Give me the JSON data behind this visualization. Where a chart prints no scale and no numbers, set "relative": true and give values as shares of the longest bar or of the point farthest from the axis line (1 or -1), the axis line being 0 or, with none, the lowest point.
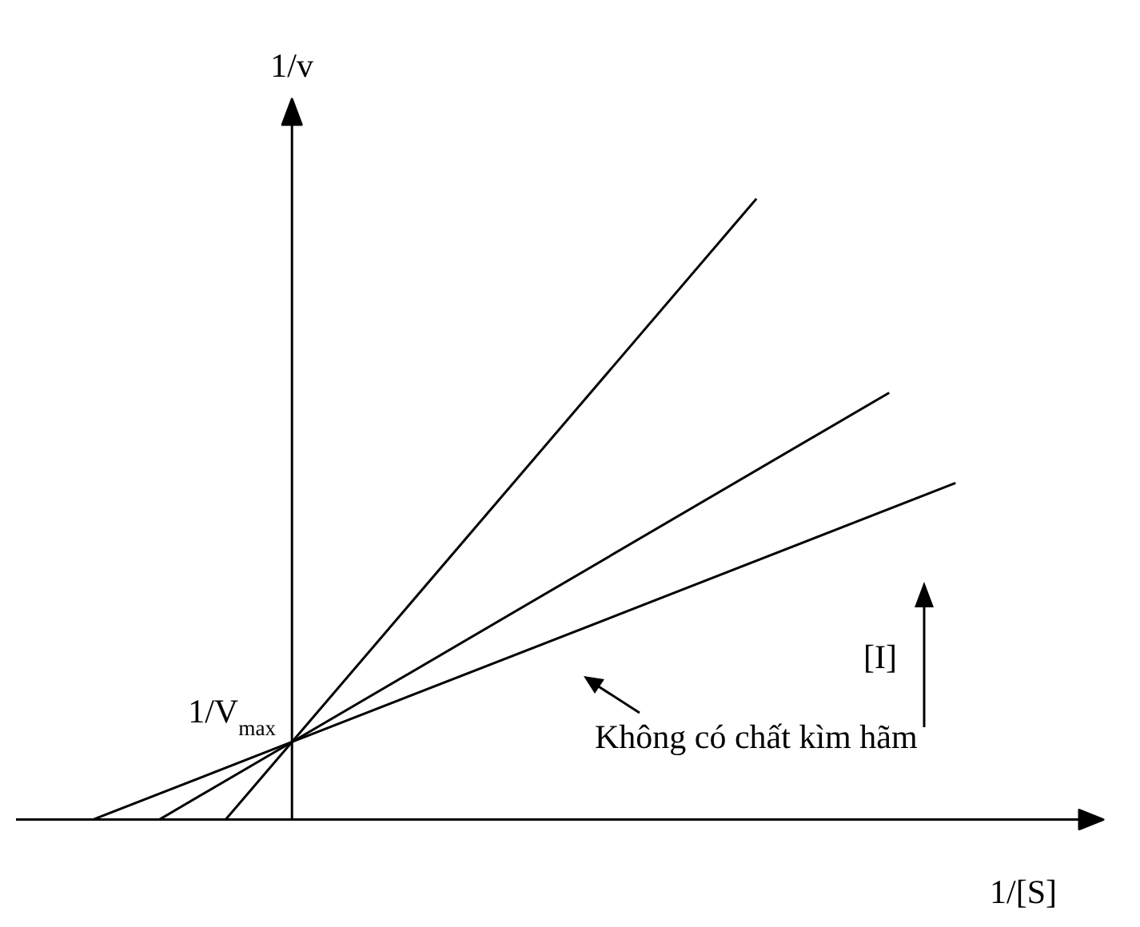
{
  "chart_data": {
    "type": "line",
    "relative": true,
    "xlabel": "1/[S]",
    "ylabel": "1/v",
    "tick_labels": false,
    "grid": false,
    "categories": [
      null,
      null,
      null,
      null,
      null,
      null,
      null,
      null,
      null,
      null,
      null,
      null,
      null,
      null
    ],
    "series": [
      {
        "color": "#000000",
        "values": [
          null,
          null,
          0,
          0.125,
          null,
          null,
          null,
          null,
          null,
          null,
          1,
          null,
          null,
          null
        ]
      },
      {
        "color": "#000000",
        "values": [
          null,
          0,
          null,
          0.125,
          null,
          null,
          null,
          null,
          null,
          null,
          null,
          null,
          0.6875,
          null
        ]
      },
      {
        "color": "#000000",
        "values": [
          0,
          null,
          null,
          0.125,
          null,
          null,
          null,
          null,
          null,
          null,
          null,
          null,
          null,
          0.542
        ]
      }
    ],
    "annotations": [
      "1/V$_{max}$",
      "Không có chất kìm hãm",
      "[I]"
    ]
  }
}
